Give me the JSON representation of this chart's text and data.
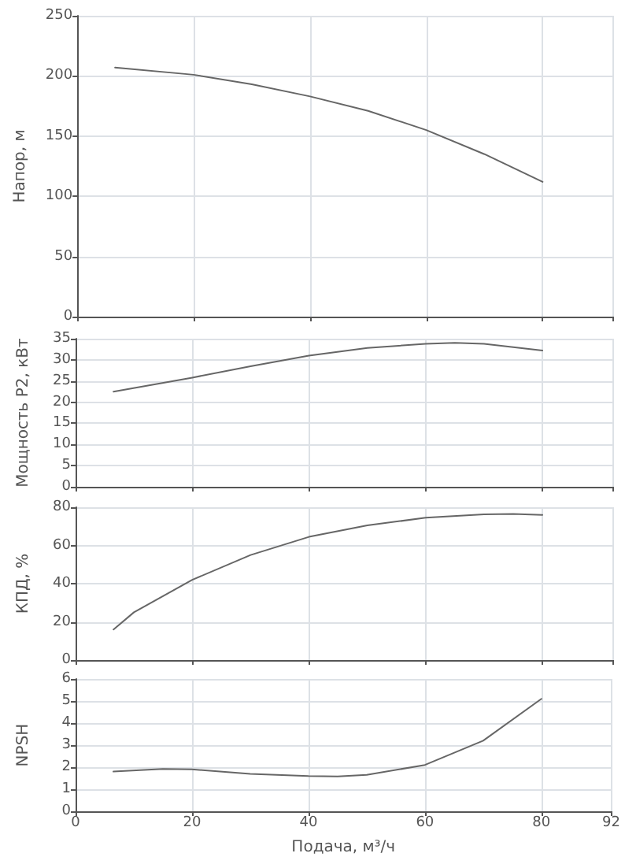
{
  "chart_data": [
    {
      "type": "line",
      "ylabel": "Напор, м",
      "x": [
        6.5,
        20,
        30,
        40,
        50,
        60,
        70,
        80
      ],
      "series": [
        {
          "color": "#666666",
          "values": [
            207,
            201,
            193,
            183,
            171,
            155,
            135,
            112
          ]
        }
      ],
      "xlim": [
        0,
        92
      ],
      "xticks": [
        0,
        20,
        40,
        60,
        80,
        92
      ],
      "ylim": [
        0,
        250
      ],
      "yticks": [
        0,
        50,
        100,
        150,
        200,
        250
      ],
      "grid": true,
      "tick_labels": "y"
    },
    {
      "type": "line",
      "ylabel": "Мощность P2, кВт",
      "x": [
        6.5,
        20,
        30,
        40,
        50,
        60,
        65,
        70,
        80
      ],
      "series": [
        {
          "color": "#666666",
          "values": [
            22.5,
            25.8,
            28.5,
            31,
            32.8,
            33.8,
            34,
            33.8,
            32.2
          ]
        }
      ],
      "xlim": [
        0,
        92
      ],
      "xticks": [
        0,
        20,
        40,
        60,
        80,
        92
      ],
      "ylim": [
        0,
        35
      ],
      "yticks": [
        0,
        5,
        10,
        15,
        20,
        25,
        30,
        35
      ],
      "grid": true,
      "tick_labels": "y"
    },
    {
      "type": "line",
      "ylabel": "КПД, %",
      "x": [
        6.5,
        10,
        20,
        30,
        40,
        50,
        60,
        70,
        75,
        80
      ],
      "series": [
        {
          "color": "#666666",
          "values": [
            16,
            25,
            42,
            55,
            64.5,
            70.5,
            74.5,
            76.3,
            76.5,
            76
          ]
        }
      ],
      "xlim": [
        0,
        92
      ],
      "xticks": [
        0,
        20,
        40,
        60,
        80,
        92
      ],
      "ylim": [
        0,
        80
      ],
      "yticks": [
        0,
        20,
        40,
        60,
        80
      ],
      "grid": true,
      "tick_labels": "y"
    },
    {
      "type": "line",
      "ylabel": "NPSH",
      "xlabel": "Подача, м³/ч",
      "x": [
        6.5,
        15,
        20,
        30,
        40,
        45,
        50,
        60,
        70,
        80
      ],
      "series": [
        {
          "color": "#666666",
          "values": [
            1.8,
            1.92,
            1.9,
            1.7,
            1.6,
            1.58,
            1.65,
            2.1,
            3.2,
            5.1
          ]
        }
      ],
      "xlim": [
        0,
        92
      ],
      "xticks": [
        0,
        20,
        40,
        60,
        80,
        92
      ],
      "ylim": [
        0,
        6
      ],
      "yticks": [
        0,
        1,
        2,
        3,
        4,
        5,
        6
      ],
      "grid": true
    }
  ]
}
